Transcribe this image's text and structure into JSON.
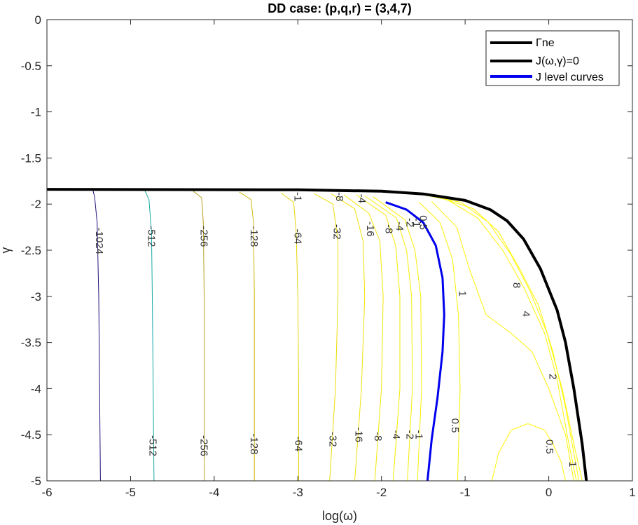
{
  "chart_data": {
    "type": "line",
    "title": "DD case: (p,q,r) = (3,4,7)",
    "xlabel": "log(ω)",
    "ylabel": "γ",
    "xlim": [
      -6,
      1
    ],
    "ylim": [
      -5,
      0
    ],
    "x_ticks": [
      -6,
      -5,
      -4,
      -3,
      -2,
      -1,
      0,
      1
    ],
    "y_ticks": [
      0,
      -0.5,
      -1,
      -1.5,
      -2,
      -2.5,
      -3,
      -3.5,
      -4,
      -4.5,
      -5
    ],
    "legend_position": "top-right",
    "legend": [
      "Γne",
      "J(ω,γ)=0",
      "J level curves"
    ],
    "series": [
      {
        "name": "Γne",
        "color": "#000000",
        "width": 4,
        "points": [
          [
            -6,
            -1.84
          ],
          [
            -3,
            -1.845
          ],
          [
            -2,
            -1.86
          ],
          [
            -1.5,
            -1.89
          ],
          [
            -1.0,
            -1.96
          ],
          [
            -0.7,
            -2.06
          ],
          [
            -0.5,
            -2.18
          ],
          [
            -0.3,
            -2.38
          ],
          [
            -0.1,
            -2.7
          ],
          [
            0.1,
            -3.15
          ],
          [
            0.2,
            -3.5
          ],
          [
            0.3,
            -4.0
          ],
          [
            0.4,
            -4.6
          ],
          [
            0.45,
            -5.0
          ]
        ]
      },
      {
        "name": "J level curves",
        "color": "#0000ee",
        "width": 3,
        "points": [
          [
            -1.95,
            -1.98
          ],
          [
            -1.7,
            -2.06
          ],
          [
            -1.5,
            -2.2
          ],
          [
            -1.35,
            -2.45
          ],
          [
            -1.27,
            -2.8
          ],
          [
            -1.25,
            -3.2
          ],
          [
            -1.27,
            -3.6
          ],
          [
            -1.33,
            -4.1
          ],
          [
            -1.4,
            -4.55
          ],
          [
            -1.45,
            -5.0
          ]
        ]
      }
    ],
    "contours": [
      {
        "level": "-1024",
        "color": "#20127a",
        "points": [
          [
            -5.45,
            -1.85
          ],
          [
            -5.43,
            -1.92
          ],
          [
            -5.4,
            -2.2
          ],
          [
            -5.38,
            -3.0
          ],
          [
            -5.37,
            -4.0
          ],
          [
            -5.36,
            -5.0
          ]
        ],
        "labels": [
          {
            "text": "-1024",
            "x": -5.37,
            "y": -2.4
          }
        ]
      },
      {
        "level": "-512",
        "color": "#1aa8a8",
        "points": [
          [
            -4.83,
            -1.85
          ],
          [
            -4.78,
            -1.95
          ],
          [
            -4.75,
            -2.3
          ],
          [
            -4.74,
            -3.0
          ],
          [
            -4.73,
            -4.0
          ],
          [
            -4.72,
            -5.0
          ]
        ],
        "labels": [
          {
            "text": "-512",
            "x": -4.75,
            "y": -2.35
          },
          {
            "text": "-512",
            "x": -4.73,
            "y": -4.62
          }
        ]
      },
      {
        "level": "-256",
        "color": "#b8a022",
        "points": [
          [
            -4.25,
            -1.86
          ],
          [
            -4.15,
            -1.93
          ],
          [
            -4.13,
            -2.2
          ],
          [
            -4.12,
            -3.0
          ],
          [
            -4.12,
            -4.0
          ],
          [
            -4.12,
            -5.0
          ]
        ],
        "labels": [
          {
            "text": "-256",
            "x": -4.12,
            "y": -2.35
          },
          {
            "text": "-256",
            "x": -4.12,
            "y": -4.62
          }
        ]
      },
      {
        "level": "-128",
        "color": "#d2b80e",
        "points": [
          [
            -3.7,
            -1.87
          ],
          [
            -3.56,
            -1.95
          ],
          [
            -3.53,
            -2.2
          ],
          [
            -3.52,
            -3.0
          ],
          [
            -3.52,
            -4.0
          ],
          [
            -3.52,
            -5.0
          ]
        ],
        "labels": [
          {
            "text": "-128",
            "x": -3.52,
            "y": -2.35
          },
          {
            "text": "-128",
            "x": -3.52,
            "y": -4.6
          }
        ]
      },
      {
        "level": "-64",
        "color": "#e6d40a",
        "points": [
          [
            -3.2,
            -1.88
          ],
          [
            -3.05,
            -1.98
          ],
          [
            -3.02,
            -2.3
          ],
          [
            -3.0,
            -3.0
          ],
          [
            -2.99,
            -4.0
          ],
          [
            -2.99,
            -5.0
          ]
        ],
        "labels": [
          {
            "text": "-64",
            "x": -3.0,
            "y": -2.35
          },
          {
            "text": "-64",
            "x": -2.99,
            "y": -4.6
          }
        ]
      },
      {
        "level": "-32",
        "color": "#eedc08",
        "points": [
          [
            -2.8,
            -1.89
          ],
          [
            -2.58,
            -2.0
          ],
          [
            -2.52,
            -2.4
          ],
          [
            -2.52,
            -3.0
          ],
          [
            -2.55,
            -4.0
          ],
          [
            -2.62,
            -5.0
          ]
        ],
        "labels": [
          {
            "text": "-32",
            "x": -2.53,
            "y": -2.3
          },
          {
            "text": "-32",
            "x": -2.58,
            "y": -4.55
          }
        ]
      },
      {
        "level": "-16",
        "color": "#f2e206",
        "points": [
          [
            -2.6,
            -1.89
          ],
          [
            -2.32,
            -2.05
          ],
          [
            -2.22,
            -2.4
          ],
          [
            -2.2,
            -3.0
          ],
          [
            -2.24,
            -4.0
          ],
          [
            -2.32,
            -5.0
          ]
        ],
        "labels": [
          {
            "text": "-16",
            "x": -2.13,
            "y": -2.27
          },
          {
            "text": "-16",
            "x": -2.27,
            "y": -4.5
          }
        ]
      },
      {
        "level": "-8",
        "color": "#f4e605",
        "points": [
          [
            -2.45,
            -1.9
          ],
          [
            -2.15,
            -2.1
          ],
          [
            -2.02,
            -2.4
          ],
          [
            -1.98,
            -3.0
          ],
          [
            -2.0,
            -4.0
          ],
          [
            -2.08,
            -5.0
          ]
        ],
        "labels": [
          {
            "text": "-8",
            "x": -1.91,
            "y": -2.27
          },
          {
            "text": "-8",
            "x": -2.04,
            "y": -4.52
          },
          {
            "text": "-8",
            "x": -2.5,
            "y": -1.92
          }
        ]
      },
      {
        "level": "-4",
        "color": "#f6e904",
        "points": [
          [
            -2.3,
            -1.9
          ],
          [
            -1.95,
            -2.12
          ],
          [
            -1.83,
            -2.45
          ],
          [
            -1.78,
            -3.0
          ],
          [
            -1.78,
            -4.0
          ],
          [
            -1.86,
            -5.0
          ]
        ],
        "labels": [
          {
            "text": "-4",
            "x": -1.78,
            "y": -2.24
          },
          {
            "text": "-4",
            "x": -1.82,
            "y": -4.5
          },
          {
            "text": "-4",
            "x": -2.23,
            "y": -1.94
          }
        ]
      },
      {
        "level": "-2",
        "color": "#f8ec03",
        "points": [
          [
            -2.2,
            -1.91
          ],
          [
            -1.82,
            -2.15
          ],
          [
            -1.7,
            -2.5
          ],
          [
            -1.64,
            -3.0
          ],
          [
            -1.63,
            -4.0
          ],
          [
            -1.69,
            -5.0
          ]
        ],
        "labels": [
          {
            "text": "-2",
            "x": -1.66,
            "y": -2.2
          },
          {
            "text": "-2",
            "x": -1.66,
            "y": -4.5
          }
        ]
      },
      {
        "level": "-1",
        "color": "#f9ee03",
        "points": [
          [
            -2.1,
            -1.92
          ],
          [
            -1.72,
            -2.17
          ],
          [
            -1.6,
            -2.5
          ],
          [
            -1.53,
            -3.0
          ],
          [
            -1.52,
            -4.0
          ],
          [
            -1.57,
            -5.0
          ]
        ],
        "labels": [
          {
            "text": "-1",
            "x": -1.58,
            "y": -2.2
          },
          {
            "text": "-1",
            "x": -1.55,
            "y": -4.5
          },
          {
            "text": "-1",
            "x": -3.0,
            "y": -1.92
          }
        ]
      },
      {
        "level": "0.5",
        "color": "#fbf103",
        "points": [
          [
            -1.55,
            -1.98
          ],
          [
            -1.3,
            -2.2
          ],
          [
            -1.15,
            -2.6
          ],
          [
            -1.08,
            -3.2
          ],
          [
            -1.06,
            -4.0
          ],
          [
            -1.09,
            -5.0
          ]
        ],
        "labels": [
          {
            "text": "0.5",
            "x": -1.5,
            "y": -2.2
          },
          {
            "text": "0.5",
            "x": -1.12,
            "y": -4.4
          }
        ]
      },
      {
        "level": "1",
        "color": "#fcf303",
        "points": [
          [
            -1.4,
            -1.97
          ],
          [
            -1.1,
            -2.25
          ],
          [
            -0.95,
            -2.7
          ],
          [
            -0.75,
            -3.2
          ],
          [
            -0.45,
            -3.4
          ],
          [
            -0.2,
            -3.6
          ],
          [
            0.0,
            -4.0
          ],
          [
            0.2,
            -4.5
          ],
          [
            0.3,
            -5.0
          ]
        ],
        "labels": [
          {
            "text": "1",
            "x": -1.03,
            "y": -2.97
          },
          {
            "text": "1",
            "x": 0.29,
            "y": -4.82
          }
        ]
      },
      {
        "level": "2",
        "color": "#fdf503",
        "points": [
          [
            -1.2,
            -1.96
          ],
          [
            -0.85,
            -2.15
          ],
          [
            -0.55,
            -2.5
          ],
          [
            -0.3,
            -2.9
          ],
          [
            -0.05,
            -3.4
          ],
          [
            0.1,
            -3.9
          ],
          [
            0.22,
            -4.5
          ],
          [
            0.33,
            -5.0
          ]
        ],
        "labels": [
          {
            "text": "2",
            "x": 0.05,
            "y": -3.87
          }
        ]
      },
      {
        "level": "4",
        "color": "#fdf603",
        "points": [
          [
            -1.3,
            -1.93
          ],
          [
            -0.9,
            -2.05
          ],
          [
            -0.6,
            -2.3
          ],
          [
            -0.35,
            -2.7
          ],
          [
            -0.12,
            -3.1
          ],
          [
            0.05,
            -3.6
          ],
          [
            0.2,
            -4.2
          ],
          [
            0.36,
            -5.0
          ]
        ],
        "labels": [
          {
            "text": "4",
            "x": -0.27,
            "y": -3.19
          }
        ]
      },
      {
        "level": "8",
        "color": "#fef703",
        "points": [
          [
            -1.5,
            -1.9
          ],
          [
            -1.05,
            -1.98
          ],
          [
            -0.72,
            -2.2
          ],
          [
            -0.45,
            -2.55
          ],
          [
            -0.22,
            -2.95
          ],
          [
            -0.02,
            -3.4
          ],
          [
            0.16,
            -4.0
          ],
          [
            0.3,
            -4.6
          ],
          [
            0.4,
            -5.0
          ]
        ],
        "labels": [
          {
            "text": "8",
            "x": -0.38,
            "y": -2.88
          }
        ]
      },
      {
        "level": "0.5b",
        "color": "#fef703",
        "points": [
          [
            -0.68,
            -5.0
          ],
          [
            -0.6,
            -4.7
          ],
          [
            -0.45,
            -4.45
          ],
          [
            -0.25,
            -4.38
          ],
          [
            -0.05,
            -4.45
          ],
          [
            0.05,
            -4.6
          ],
          [
            0.15,
            -4.8
          ],
          [
            0.2,
            -5.0
          ]
        ],
        "labels": [
          {
            "text": "0.5",
            "x": 0.01,
            "y": -4.63
          }
        ]
      }
    ]
  }
}
